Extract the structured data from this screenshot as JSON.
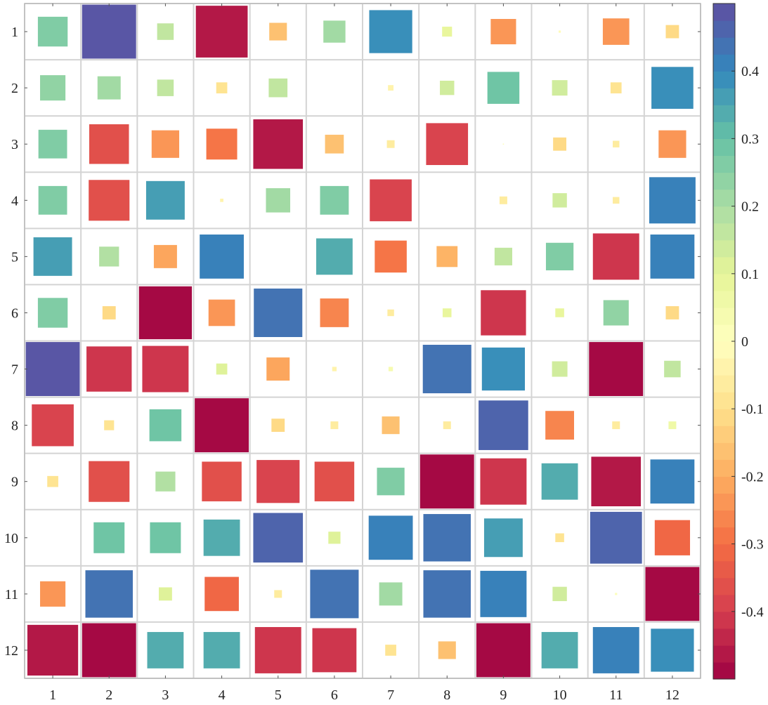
{
  "chart_data": {
    "type": "heatmap",
    "title": "",
    "xlabel": "",
    "ylabel": "",
    "x_labels": [
      "1",
      "2",
      "3",
      "4",
      "5",
      "6",
      "7",
      "8",
      "9",
      "10",
      "11",
      "12"
    ],
    "y_labels": [
      "1",
      "2",
      "3",
      "4",
      "5",
      "6",
      "7",
      "8",
      "9",
      "10",
      "11",
      "12"
    ],
    "grid": true,
    "legend": "colorbar-right",
    "colorbar": {
      "min": -0.5,
      "max": 0.5,
      "levels": 40,
      "ticks": [
        0.4,
        0.3,
        0.2,
        0.1,
        0,
        -0.1,
        -0.2,
        -0.3,
        -0.4
      ],
      "tick_labels": [
        "0.4",
        "0.3",
        "0.2",
        "0.1",
        "0",
        "-0.1",
        "-0.2",
        "-0.3",
        "-0.4"
      ]
    },
    "colormap": [
      "#9e0142",
      "#d53e4f",
      "#f46d43",
      "#fdae61",
      "#fee08b",
      "#ffffbf",
      "#e6f598",
      "#abdda4",
      "#66c2a5",
      "#3288bd",
      "#5e4fa2"
    ],
    "values": [
      [
        0.27,
        0.49,
        0.15,
        -0.47,
        -0.16,
        0.2,
        0.39,
        0.09,
        -0.23,
        -0.02,
        -0.24,
        -0.12
      ],
      [
        0.23,
        0.21,
        0.15,
        -0.1,
        0.17,
        0.0,
        -0.05,
        0.13,
        0.29,
        0.14,
        -0.1,
        0.38
      ],
      [
        0.26,
        -0.36,
        -0.25,
        -0.28,
        -0.45,
        -0.17,
        -0.07,
        -0.38,
        0.01,
        -0.12,
        -0.06,
        -0.25
      ],
      [
        0.26,
        -0.37,
        0.35,
        -0.03,
        0.22,
        0.26,
        -0.38,
        0.0,
        -0.07,
        0.13,
        -0.06,
        0.42
      ],
      [
        0.35,
        0.18,
        -0.21,
        0.4,
        0.0,
        0.33,
        -0.29,
        -0.19,
        0.16,
        0.25,
        -0.42,
        0.4
      ],
      [
        0.27,
        -0.12,
        -0.48,
        -0.24,
        0.44,
        -0.26,
        -0.06,
        0.08,
        -0.41,
        0.08,
        0.23,
        -0.12
      ],
      [
        0.49,
        -0.41,
        -0.42,
        0.1,
        -0.21,
        -0.04,
        0.04,
        0.44,
        0.39,
        0.14,
        -0.49,
        0.15
      ],
      [
        -0.38,
        -0.09,
        0.29,
        -0.49,
        -0.12,
        -0.07,
        -0.16,
        -0.07,
        0.45,
        -0.26,
        -0.07,
        0.07
      ],
      [
        -0.1,
        -0.37,
        0.18,
        -0.36,
        -0.39,
        -0.36,
        0.25,
        -0.49,
        -0.42,
        0.33,
        -0.45,
        0.4
      ],
      [
        0.0,
        0.28,
        0.28,
        0.33,
        0.45,
        0.11,
        0.4,
        0.43,
        0.35,
        -0.08,
        0.47,
        -0.32
      ],
      [
        -0.23,
        0.43,
        0.12,
        -0.31,
        -0.07,
        0.44,
        0.21,
        0.43,
        0.42,
        0.13,
        0.02,
        -0.49
      ],
      [
        -0.46,
        -0.49,
        0.33,
        0.33,
        -0.42,
        -0.4,
        -0.1,
        -0.16,
        -0.49,
        0.33,
        0.42,
        0.39
      ]
    ]
  }
}
